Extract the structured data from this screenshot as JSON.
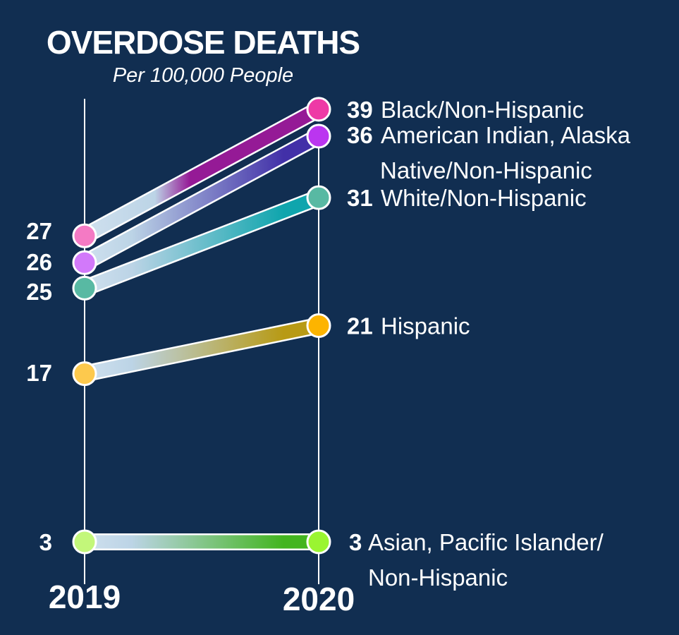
{
  "chart_data": {
    "type": "slope",
    "title": "OVERDOSE DEATHS",
    "subtitle": "Per 100,000 People",
    "categories": [
      "2019",
      "2020"
    ],
    "background": "#112e51",
    "series": [
      {
        "name": "Black/Non-Hispanic",
        "label_lines": [
          "Black/Non-Hispanic"
        ],
        "values": [
          27,
          39
        ],
        "color_start": "#f47ac4",
        "color_end": "#ee3aa6",
        "line_color": "#951a96"
      },
      {
        "name": "American Indian, Alaska Native/Non-Hispanic",
        "label_lines": [
          "American Indian, Alaska",
          "Native/Non-Hispanic"
        ],
        "values": [
          26,
          36
        ],
        "color_start": "#d279fa",
        "color_end": "#bb35f0",
        "line_color": "#4230a8"
      },
      {
        "name": "White/Non-Hispanic",
        "label_lines": [
          "White/Non-Hispanic"
        ],
        "values": [
          25,
          31
        ],
        "color_start": "#58b9a3",
        "color_end": "#58b9a3",
        "line_color": "#0fa5ad"
      },
      {
        "name": "Hispanic",
        "label_lines": [
          "Hispanic"
        ],
        "values": [
          17,
          21
        ],
        "color_start": "#fdc94d",
        "color_end": "#fdb400",
        "line_color": "#b89a14"
      },
      {
        "name": "Asian, Pacific Islander/Non-Hispanic",
        "label_lines": [
          "Asian, Pacific Islander/",
          "Non-Hispanic"
        ],
        "values": [
          3,
          3
        ],
        "color_start": "#c3f77a",
        "color_end": "#9af531",
        "line_color": "#43b51f"
      }
    ]
  }
}
